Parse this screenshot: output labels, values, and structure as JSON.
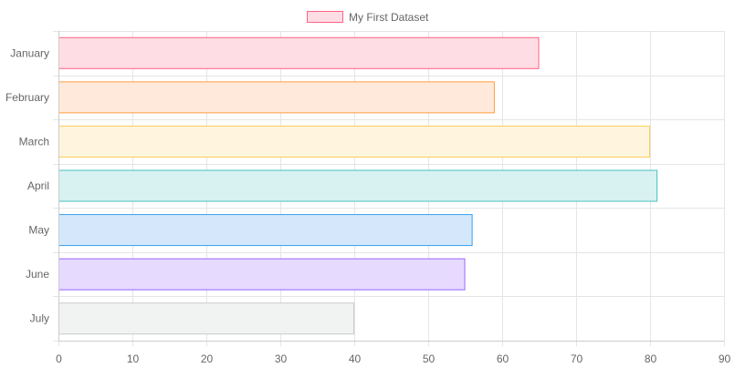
{
  "chart_data": {
    "type": "bar",
    "orientation": "horizontal",
    "categories": [
      "January",
      "February",
      "March",
      "April",
      "May",
      "June",
      "July"
    ],
    "series": [
      {
        "name": "My First Dataset",
        "values": [
          65,
          59,
          80,
          81,
          56,
          55,
          40
        ]
      }
    ],
    "xlim": [
      0,
      90
    ],
    "x_ticks": [
      0,
      10,
      20,
      30,
      40,
      50,
      60,
      70,
      80,
      90
    ],
    "grid": true,
    "legend_position": "top",
    "colors": {
      "fills": [
        "#ffdde4",
        "#ffe9da",
        "#fff5de",
        "#d8f1f1",
        "#d5e8fb",
        "#e7daff",
        "#f1f2f2"
      ],
      "borders": [
        "#ff6384",
        "#ff9f40",
        "#ffcd56",
        "#4bc0c0",
        "#36a2eb",
        "#9966ff",
        "#c9cbcf"
      ],
      "grid": "#e5e5e5",
      "axis": "#cccccc",
      "text": "#666666"
    }
  }
}
